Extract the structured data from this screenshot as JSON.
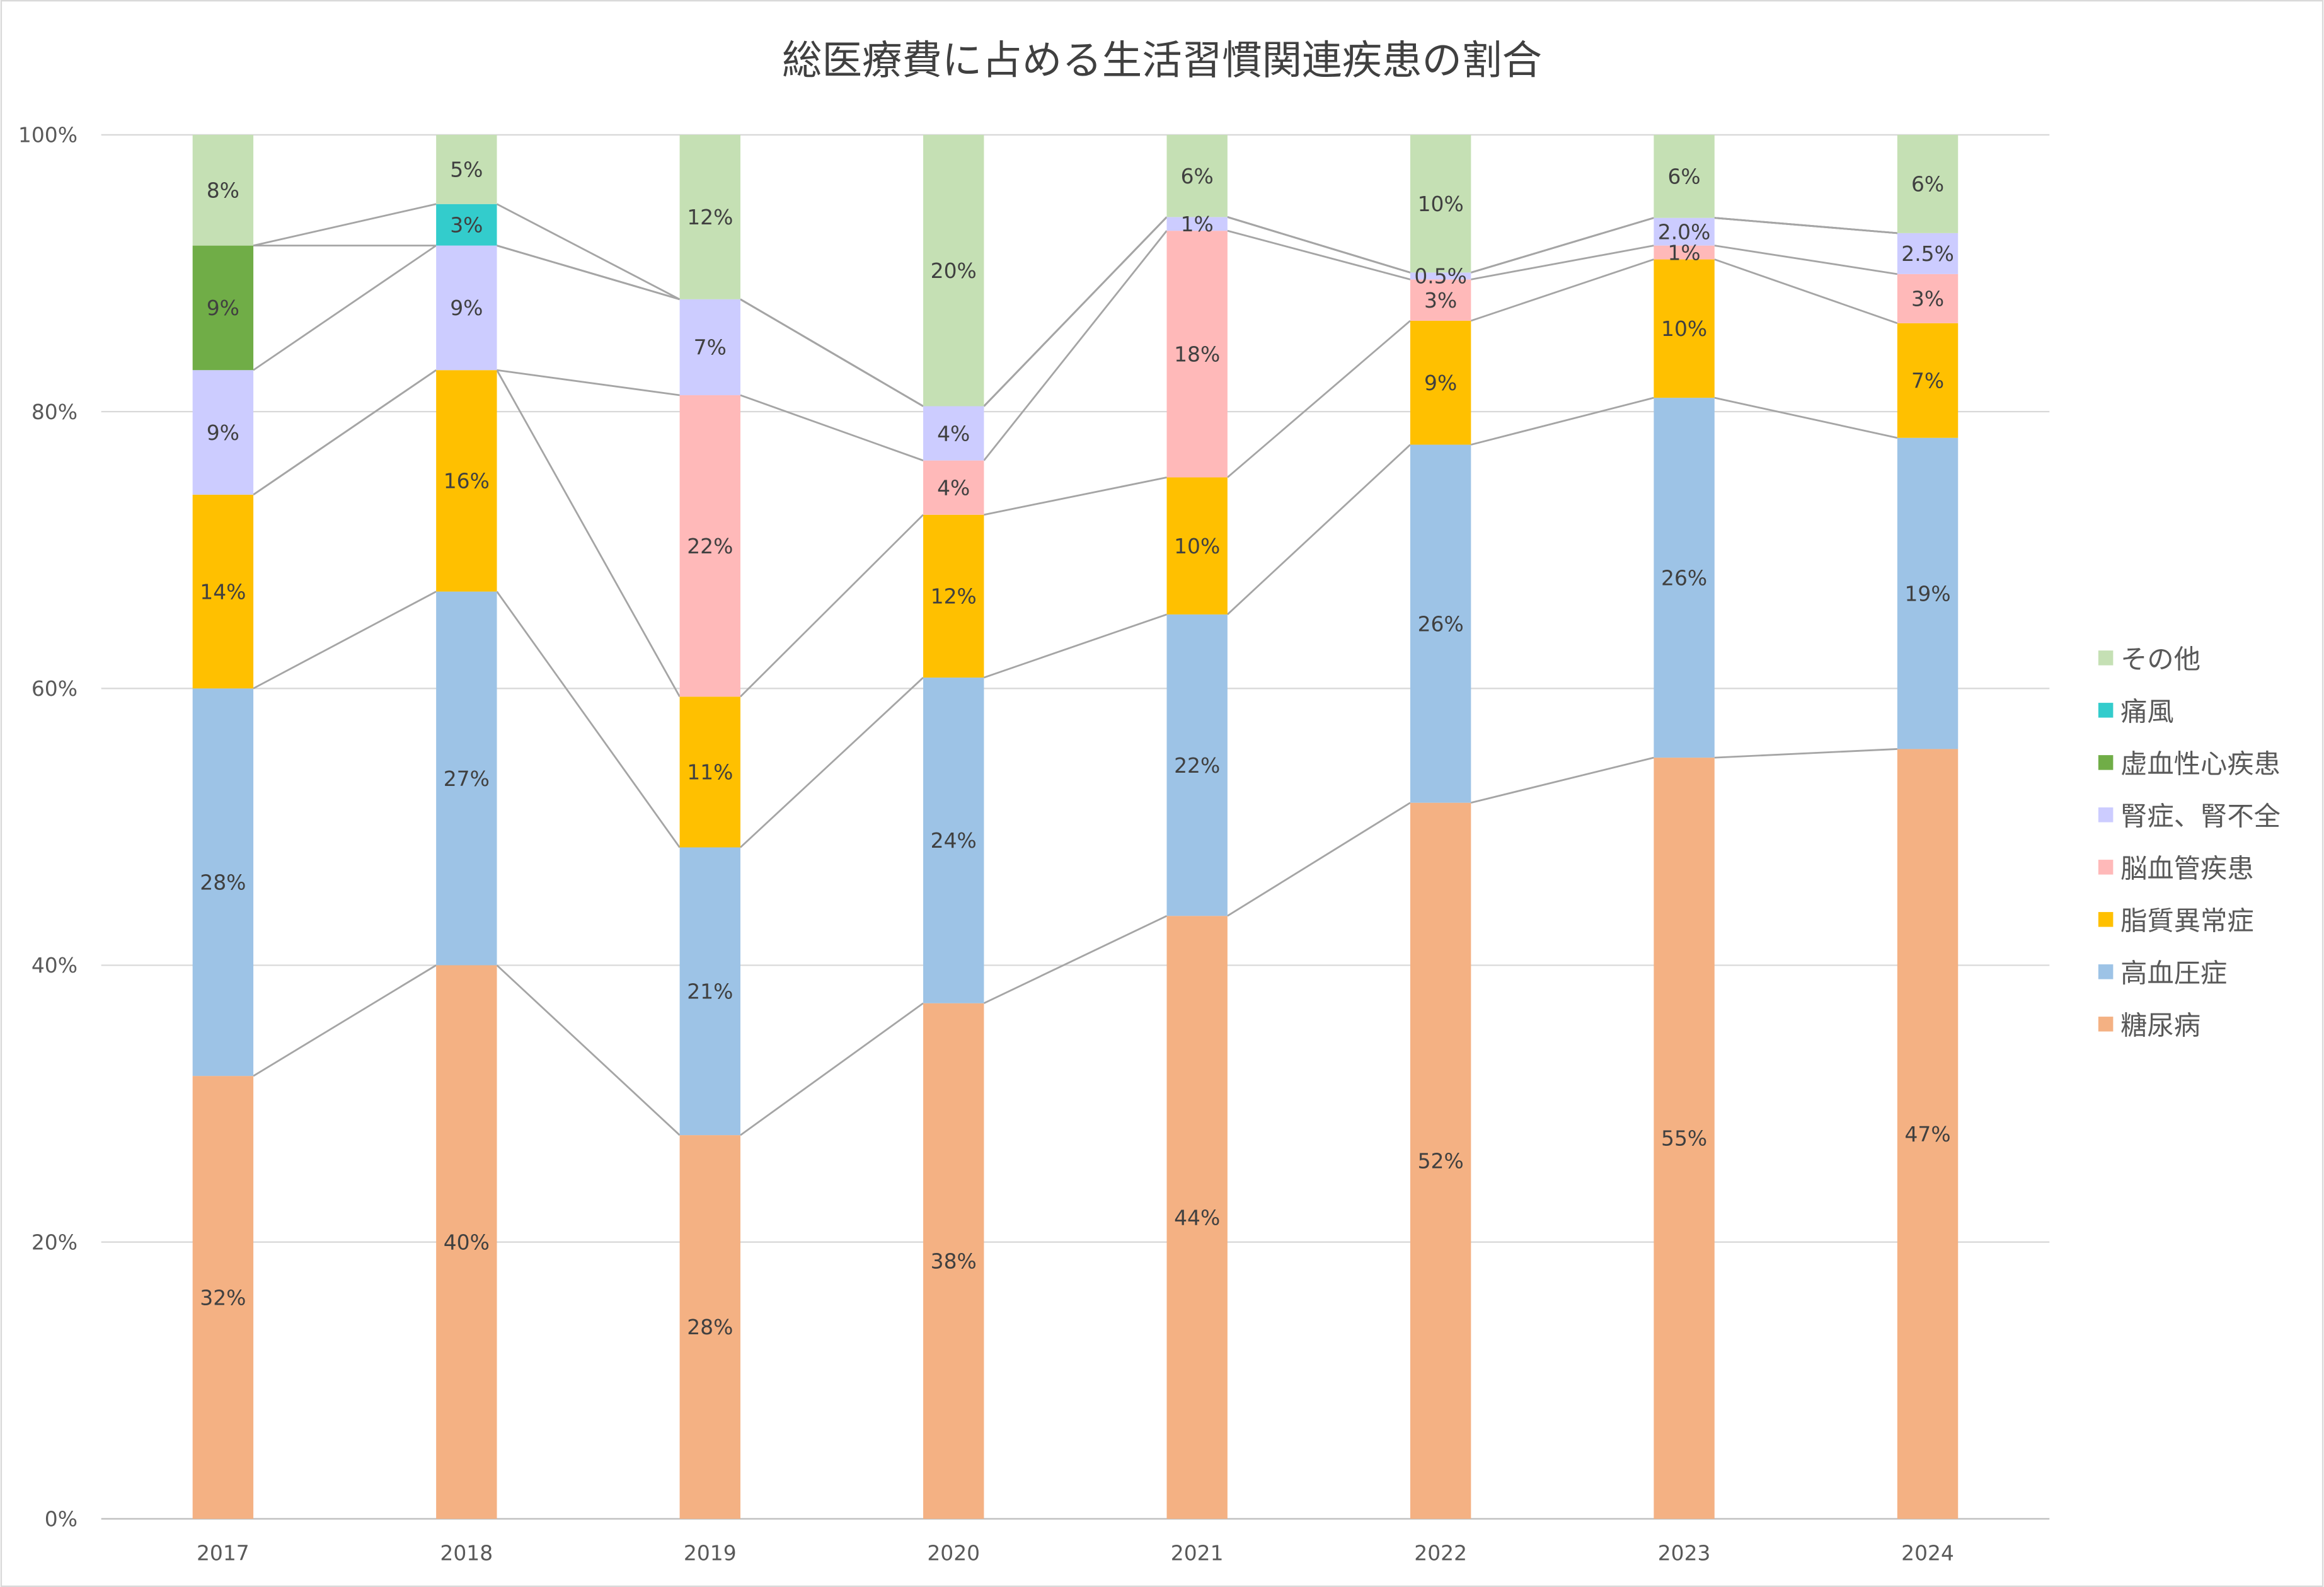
{
  "chart_data": {
    "type": "bar",
    "stacked": "percent",
    "title": "総医療費に占める生活習慣関連疾患の割合",
    "xlabel": "",
    "ylabel": "",
    "ylim": [
      0,
      100
    ],
    "yticks": [
      "0%",
      "20%",
      "40%",
      "60%",
      "80%",
      "100%"
    ],
    "grid": true,
    "legend_position": "right",
    "series_lines": true,
    "categories": [
      "2017",
      "2018",
      "2019",
      "2020",
      "2021",
      "2022",
      "2023",
      "2024"
    ],
    "series": [
      {
        "name": "糖尿病",
        "color": "#F4B183",
        "values": [
          32,
          40,
          28,
          38,
          44,
          52,
          55,
          47
        ],
        "labels": [
          "32%",
          "40%",
          "28%",
          "38%",
          "44%",
          "52%",
          "55%",
          "47%"
        ]
      },
      {
        "name": "高血圧症",
        "color": "#9DC3E6",
        "values": [
          28,
          27,
          21,
          24,
          22,
          26,
          26,
          19
        ],
        "labels": [
          "28%",
          "27%",
          "21%",
          "24%",
          "22%",
          "26%",
          "26%",
          "19%"
        ]
      },
      {
        "name": "脂質異常症",
        "color": "#FFC000",
        "values": [
          14,
          16,
          11,
          12,
          10,
          9,
          10,
          7
        ],
        "labels": [
          "14%",
          "16%",
          "11%",
          "12%",
          "10%",
          "9%",
          "10%",
          "7%"
        ]
      },
      {
        "name": "脳血管疾患",
        "color": "#FFB9B9",
        "values": [
          0,
          0,
          22,
          4,
          18,
          3,
          1,
          3
        ],
        "labels": [
          null,
          null,
          "22%",
          "4%",
          "18%",
          "3%",
          "1%",
          "3%"
        ]
      },
      {
        "name": "腎症、腎不全",
        "color": "#CCCCFF",
        "values": [
          9,
          9,
          7,
          4,
          1,
          0.5,
          2.0,
          2.5
        ],
        "labels": [
          "9%",
          "9%",
          "7%",
          "4%",
          "1%",
          "0.5%",
          "2.0%",
          "2.5%"
        ]
      },
      {
        "name": "虚血性心疾患",
        "color": "#70AD47",
        "values": [
          9,
          0,
          0,
          0,
          0,
          0,
          0,
          0
        ],
        "labels": [
          "9%",
          null,
          null,
          null,
          null,
          null,
          null,
          null
        ]
      },
      {
        "name": "痛風",
        "color": "#33CCCC",
        "values": [
          0,
          3,
          0,
          0,
          0,
          0,
          0,
          0
        ],
        "labels": [
          null,
          "3%",
          null,
          null,
          null,
          null,
          null,
          null
        ]
      },
      {
        "name": "その他",
        "color": "#C5E0B4",
        "values": [
          8,
          5,
          12,
          20,
          6,
          10,
          6,
          6
        ],
        "labels": [
          "8%",
          "5%",
          "12%",
          "20%",
          "6%",
          "10%",
          "6%",
          "6%"
        ]
      }
    ]
  }
}
